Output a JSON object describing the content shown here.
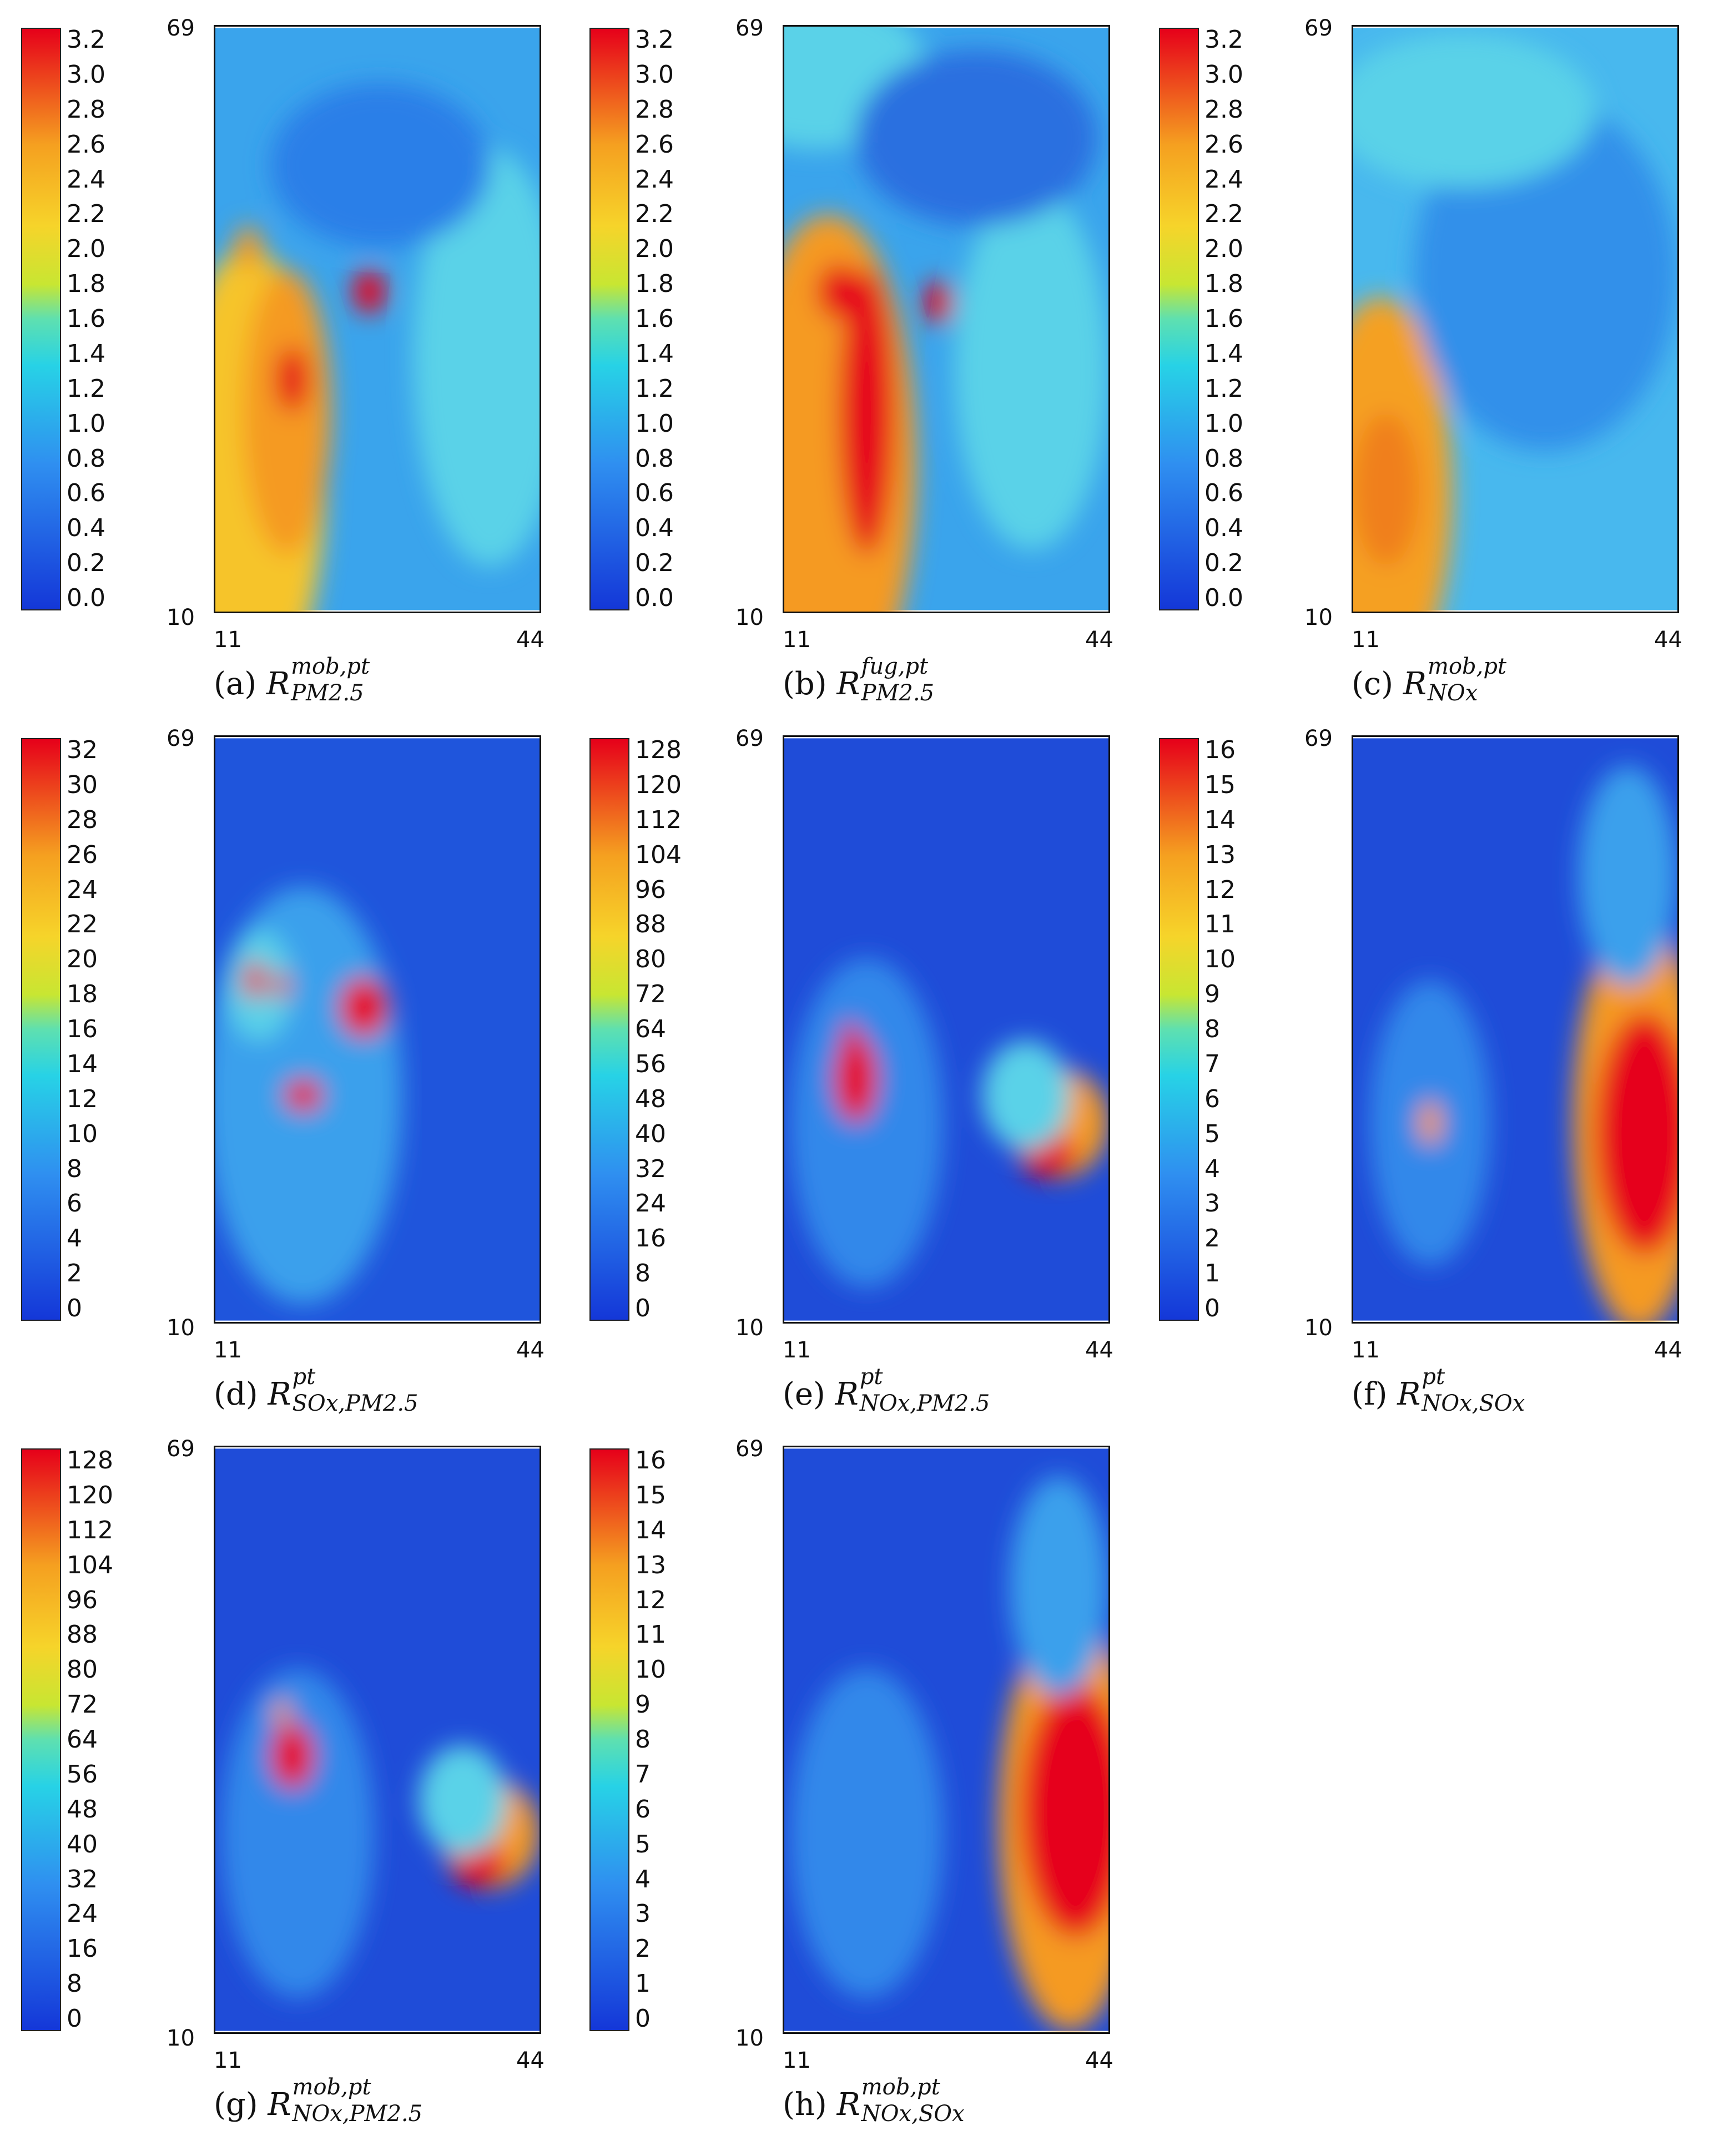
{
  "colorbar_scales": [
    {
      "id": "a",
      "ticks": [
        "0.0",
        "0.2",
        "0.4",
        "0.6",
        "0.8",
        "1.0",
        "1.2",
        "1.4",
        "1.6",
        "1.8",
        "2.0",
        "2.2",
        "2.4",
        "2.6",
        "2.8",
        "3.0",
        "3.2"
      ]
    },
    {
      "id": "b",
      "ticks": [
        "0.0",
        "0.2",
        "0.4",
        "0.6",
        "0.8",
        "1.0",
        "1.2",
        "1.4",
        "1.6",
        "1.8",
        "2.0",
        "2.2",
        "2.4",
        "2.6",
        "2.8",
        "3.0",
        "3.2"
      ]
    },
    {
      "id": "c",
      "ticks": [
        "0.0",
        "0.2",
        "0.4",
        "0.6",
        "0.8",
        "1.0",
        "1.2",
        "1.4",
        "1.6",
        "1.8",
        "2.0",
        "2.2",
        "2.4",
        "2.6",
        "2.8",
        "3.0",
        "3.2"
      ]
    },
    {
      "id": "d",
      "ticks": [
        "0",
        "2",
        "4",
        "6",
        "8",
        "10",
        "12",
        "14",
        "16",
        "18",
        "20",
        "22",
        "24",
        "26",
        "28",
        "30",
        "32"
      ]
    },
    {
      "id": "e",
      "ticks": [
        "0",
        "8",
        "16",
        "24",
        "32",
        "40",
        "48",
        "56",
        "64",
        "72",
        "80",
        "88",
        "96",
        "104",
        "112",
        "120",
        "128"
      ]
    },
    {
      "id": "f",
      "ticks": [
        "0",
        "1",
        "2",
        "3",
        "4",
        "5",
        "6",
        "7",
        "8",
        "9",
        "10",
        "11",
        "12",
        "13",
        "14",
        "15",
        "16"
      ]
    },
    {
      "id": "g",
      "ticks": [
        "0",
        "8",
        "16",
        "24",
        "32",
        "40",
        "48",
        "56",
        "64",
        "72",
        "80",
        "88",
        "96",
        "104",
        "112",
        "120",
        "128"
      ]
    },
    {
      "id": "h",
      "ticks": [
        "0",
        "1",
        "2",
        "3",
        "4",
        "5",
        "6",
        "7",
        "8",
        "9",
        "10",
        "11",
        "12",
        "13",
        "14",
        "15",
        "16"
      ]
    }
  ],
  "axis": {
    "y_top": "69",
    "y_bottom": "10",
    "x_left": "11",
    "x_right": "44"
  },
  "panels": [
    {
      "id": "a",
      "label": "(a)",
      "sup": "mob,pt",
      "sub": "PM2.5"
    },
    {
      "id": "b",
      "label": "(b)",
      "sup": "fug,pt",
      "sub": "PM2.5"
    },
    {
      "id": "c",
      "label": "(c)",
      "sup": "mob,pt",
      "sub": "NOx"
    },
    {
      "id": "d",
      "label": "(d)",
      "sup": "pt",
      "sub": "SOx,PM2.5"
    },
    {
      "id": "e",
      "label": "(e)",
      "sup": "pt",
      "sub": "NOx,PM2.5"
    },
    {
      "id": "f",
      "label": "(f)",
      "sup": "pt",
      "sub": "NOx,SOx"
    },
    {
      "id": "g",
      "label": "(g)",
      "sup": "mob,pt",
      "sub": "NOx,PM2.5"
    },
    {
      "id": "h",
      "label": "(h)",
      "sup": "mob,pt",
      "sub": "NOx,SOx"
    }
  ],
  "caption_symbol": "R",
  "colors": {
    "low": "#1a3fd8",
    "mid": "#29c9e0",
    "mid2": "#c8e830",
    "high": "#f4a020",
    "max": "#e8001a"
  }
}
